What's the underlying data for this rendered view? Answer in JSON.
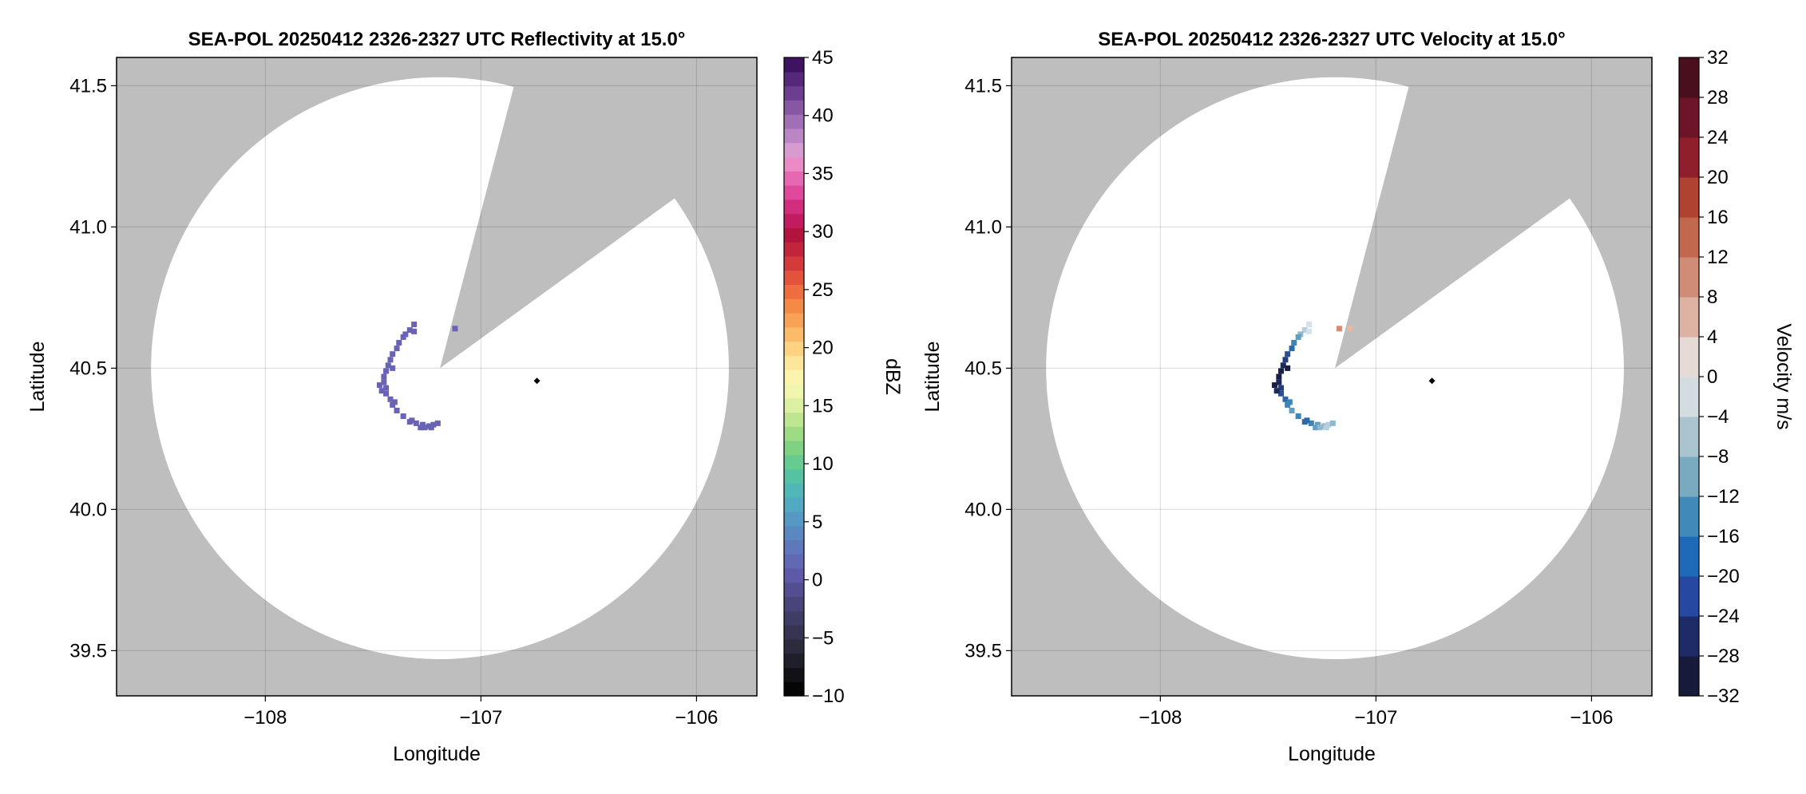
{
  "chart_data": [
    {
      "type": "heatmap",
      "title": "SEA-POL 20250412 2326-2327 UTC Reflectivity at 15.0°",
      "xlabel": "Longitude",
      "ylabel": "Latitude",
      "xlim": [
        -108.69,
        -105.72
      ],
      "ylim": [
        39.34,
        41.6
      ],
      "x_ticks": [
        -108,
        -107,
        -106
      ],
      "x_tick_labels": [
        "−108",
        "−107",
        "−106"
      ],
      "y_ticks": [
        39.5,
        40.0,
        40.5,
        41.0,
        41.5
      ],
      "y_tick_labels": [
        "39.5",
        "40.0",
        "40.5",
        "41.0",
        "41.5"
      ],
      "grid": true,
      "background_color": "#bebebe",
      "scan_disk": {
        "center": [
          -107.19,
          40.5
        ],
        "radius_lon": 1.34,
        "radius_lat": 1.03,
        "blocked_sector_edges": [
          [
            -106.86,
            41.46
          ],
          [
            -106.14,
            41.08
          ]
        ],
        "radar_site_marker": [
          -106.74,
          40.455
        ]
      },
      "echoes": {
        "color": "#6a63b5",
        "points": [
          [
            -107.33,
            40.635
          ],
          [
            -107.31,
            40.63
          ],
          [
            -107.35,
            40.62
          ],
          [
            -107.36,
            40.61
          ],
          [
            -107.38,
            40.59
          ],
          [
            -107.39,
            40.57
          ],
          [
            -107.41,
            40.55
          ],
          [
            -107.42,
            40.53
          ],
          [
            -107.43,
            40.51
          ],
          [
            -107.44,
            40.49
          ],
          [
            -107.45,
            40.47
          ],
          [
            -107.45,
            40.45
          ],
          [
            -107.44,
            40.43
          ],
          [
            -107.44,
            40.41
          ],
          [
            -107.42,
            40.39
          ],
          [
            -107.41,
            40.37
          ],
          [
            -107.39,
            40.35
          ],
          [
            -107.36,
            40.33
          ],
          [
            -107.33,
            40.31
          ],
          [
            -107.3,
            40.305
          ],
          [
            -107.27,
            40.3
          ],
          [
            -107.24,
            40.295
          ],
          [
            -107.22,
            40.3
          ],
          [
            -107.2,
            40.305
          ],
          [
            -107.28,
            40.29
          ],
          [
            -107.26,
            40.29
          ],
          [
            -107.23,
            40.29
          ],
          [
            -107.32,
            40.315
          ],
          [
            -107.41,
            40.5
          ],
          [
            -107.47,
            40.44
          ],
          [
            -107.46,
            40.42
          ],
          [
            -107.4,
            40.38
          ],
          [
            -107.12,
            40.64
          ],
          [
            -107.31,
            40.655
          ]
        ]
      },
      "colorbar": {
        "label": "dBZ",
        "min": -10,
        "max": 45,
        "ticks": [
          -10,
          -5,
          0,
          5,
          10,
          15,
          20,
          25,
          30,
          35,
          40,
          45
        ],
        "tick_labels": [
          "−10",
          "−5",
          "0",
          "5",
          "10",
          "15",
          "20",
          "25",
          "30",
          "35",
          "40",
          "45"
        ],
        "colors": [
          "#050505",
          "#121216",
          "#1f1f29",
          "#2b2b3d",
          "#363451",
          "#3f3c66",
          "#49447a",
          "#534e91",
          "#5e5aa7",
          "#6168b4",
          "#5f78bc",
          "#5a89c2",
          "#5699c4",
          "#52a9c2",
          "#4fb7b6",
          "#55c3a3",
          "#65cb8f",
          "#80d283",
          "#9edb85",
          "#bee691",
          "#dbf0a1",
          "#f0f6ad",
          "#fbf4ad",
          "#fde69a",
          "#fdd281",
          "#fbbb69",
          "#f9a255",
          "#f58a47",
          "#ee6e3f",
          "#e3523a",
          "#d43a3a",
          "#c2243c",
          "#b3143e",
          "#c31b5f",
          "#d32d7e",
          "#df489b",
          "#e668b3",
          "#ea8bc6",
          "#d79bcf",
          "#bc86c5",
          "#a16fb6",
          "#8757a4",
          "#6d3e8f",
          "#56287a",
          "#3e1460"
        ]
      }
    },
    {
      "type": "heatmap",
      "title": "SEA-POL 20250412 2326-2327 UTC Velocity at 15.0°",
      "xlabel": "Longitude",
      "ylabel": "Latitude",
      "xlim": [
        -108.69,
        -105.72
      ],
      "ylim": [
        39.34,
        41.6
      ],
      "x_ticks": [
        -108,
        -107,
        -106
      ],
      "x_tick_labels": [
        "−108",
        "−107",
        "−106"
      ],
      "y_ticks": [
        39.5,
        40.0,
        40.5,
        41.0,
        41.5
      ],
      "y_tick_labels": [
        "39.5",
        "40.0",
        "40.5",
        "41.0",
        "41.5"
      ],
      "grid": true,
      "background_color": "#bebebe",
      "scan_disk": {
        "center": [
          -107.19,
          40.5
        ],
        "radius_lon": 1.34,
        "radius_lat": 1.03,
        "blocked_sector_edges": [
          [
            -106.86,
            41.46
          ],
          [
            -106.14,
            41.08
          ]
        ],
        "radar_site_marker": [
          -106.74,
          40.455
        ]
      },
      "echoes": {
        "points": [
          [
            -107.33,
            40.635,
            "#b6cfdc"
          ],
          [
            -107.31,
            40.63,
            "#d6e2ea"
          ],
          [
            -107.35,
            40.62,
            "#8db9d0"
          ],
          [
            -107.36,
            40.61,
            "#5f9fc2"
          ],
          [
            -107.38,
            40.59,
            "#3d84b8"
          ],
          [
            -107.39,
            40.57,
            "#2a6aab"
          ],
          [
            -107.41,
            40.55,
            "#2b4f96"
          ],
          [
            -107.42,
            40.53,
            "#243d80"
          ],
          [
            -107.43,
            40.51,
            "#1d2a5e"
          ],
          [
            -107.44,
            40.49,
            "#1a1f48"
          ],
          [
            -107.45,
            40.47,
            "#1a1f48"
          ],
          [
            -107.45,
            40.45,
            "#1d2a5e"
          ],
          [
            -107.44,
            40.43,
            "#243d80"
          ],
          [
            -107.44,
            40.41,
            "#2b4f96"
          ],
          [
            -107.42,
            40.39,
            "#2a6aab"
          ],
          [
            -107.41,
            40.37,
            "#3d84b8"
          ],
          [
            -107.39,
            40.35,
            "#5f9fc2"
          ],
          [
            -107.36,
            40.33,
            "#3d84b8"
          ],
          [
            -107.33,
            40.31,
            "#2a6aab"
          ],
          [
            -107.3,
            40.305,
            "#3d84b8"
          ],
          [
            -107.27,
            40.3,
            "#5f9fc2"
          ],
          [
            -107.24,
            40.295,
            "#8db9d0"
          ],
          [
            -107.22,
            40.3,
            "#b6cfdc"
          ],
          [
            -107.2,
            40.305,
            "#8db9d0"
          ],
          [
            -107.28,
            40.29,
            "#5f9fc2"
          ],
          [
            -107.26,
            40.29,
            "#8db9d0"
          ],
          [
            -107.23,
            40.29,
            "#b6cfdc"
          ],
          [
            -107.32,
            40.315,
            "#2a6aab"
          ],
          [
            -107.41,
            40.5,
            "#1a1f48"
          ],
          [
            -107.47,
            40.44,
            "#1a1f48"
          ],
          [
            -107.46,
            40.42,
            "#1d2a5e"
          ],
          [
            -107.4,
            40.38,
            "#3d84b8"
          ],
          [
            -107.12,
            40.64,
            "#e8b8a6"
          ],
          [
            -107.17,
            40.64,
            "#d58b78"
          ],
          [
            -107.31,
            40.655,
            "#d6e2ea"
          ]
        ]
      },
      "colorbar": {
        "label": "Velocity m/s",
        "min": -32,
        "max": 32,
        "ticks": [
          -32,
          -28,
          -24,
          -20,
          -16,
          -12,
          -8,
          -4,
          0,
          4,
          8,
          12,
          16,
          20,
          24,
          28,
          32
        ],
        "tick_labels": [
          "−32",
          "−28",
          "−24",
          "−20",
          "−16",
          "−12",
          "−8",
          "−4",
          "0",
          "4",
          "8",
          "12",
          "16",
          "20",
          "24",
          "28",
          "32"
        ],
        "colors": [
          "#171a3a",
          "#1f2b66",
          "#2748a0",
          "#1f6ab8",
          "#4189b9",
          "#79aac0",
          "#aac4cf",
          "#d3dde1",
          "#e5dad6",
          "#ddb2a3",
          "#d08c77",
          "#c2684e",
          "#b04232",
          "#8f1f2b",
          "#6e1428",
          "#4a0f1c"
        ]
      }
    }
  ]
}
